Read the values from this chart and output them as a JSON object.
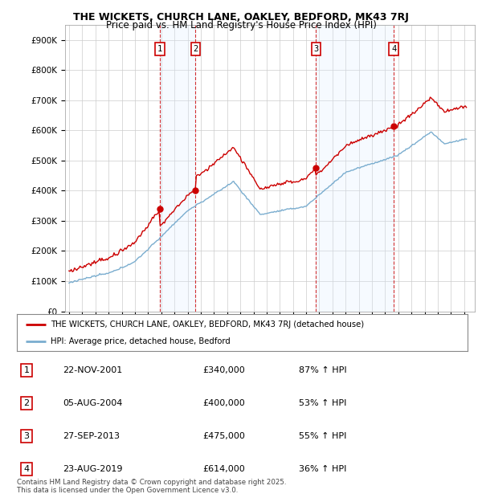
{
  "title": "THE WICKETS, CHURCH LANE, OAKLEY, BEDFORD, MK43 7RJ",
  "subtitle": "Price paid vs. HM Land Registry's House Price Index (HPI)",
  "ylabel_ticks": [
    "£0",
    "£100K",
    "£200K",
    "£300K",
    "£400K",
    "£500K",
    "£600K",
    "£700K",
    "£800K",
    "£900K"
  ],
  "ylim": [
    0,
    950000
  ],
  "sale_dates": [
    2001.9,
    2004.6,
    2013.75,
    2019.65
  ],
  "sale_labels": [
    "1",
    "2",
    "3",
    "4"
  ],
  "sale_prices": [
    340000,
    400000,
    475000,
    614000
  ],
  "legend_line1": "THE WICKETS, CHURCH LANE, OAKLEY, BEDFORD, MK43 7RJ (detached house)",
  "legend_line2": "HPI: Average price, detached house, Bedford",
  "table_entries": [
    {
      "num": "1",
      "date": "22-NOV-2001",
      "price": "£340,000",
      "pct": "87% ↑ HPI"
    },
    {
      "num": "2",
      "date": "05-AUG-2004",
      "price": "£400,000",
      "pct": "53% ↑ HPI"
    },
    {
      "num": "3",
      "date": "27-SEP-2013",
      "price": "£475,000",
      "pct": "55% ↑ HPI"
    },
    {
      "num": "4",
      "date": "23-AUG-2019",
      "price": "£614,000",
      "pct": "36% ↑ HPI"
    }
  ],
  "footnote": "Contains HM Land Registry data © Crown copyright and database right 2025.\nThis data is licensed under the Open Government Licence v3.0.",
  "red_color": "#cc0000",
  "blue_color": "#7aadcf",
  "shading_color": "#ddeeff",
  "background_color": "#ffffff",
  "grid_color": "#cccccc"
}
